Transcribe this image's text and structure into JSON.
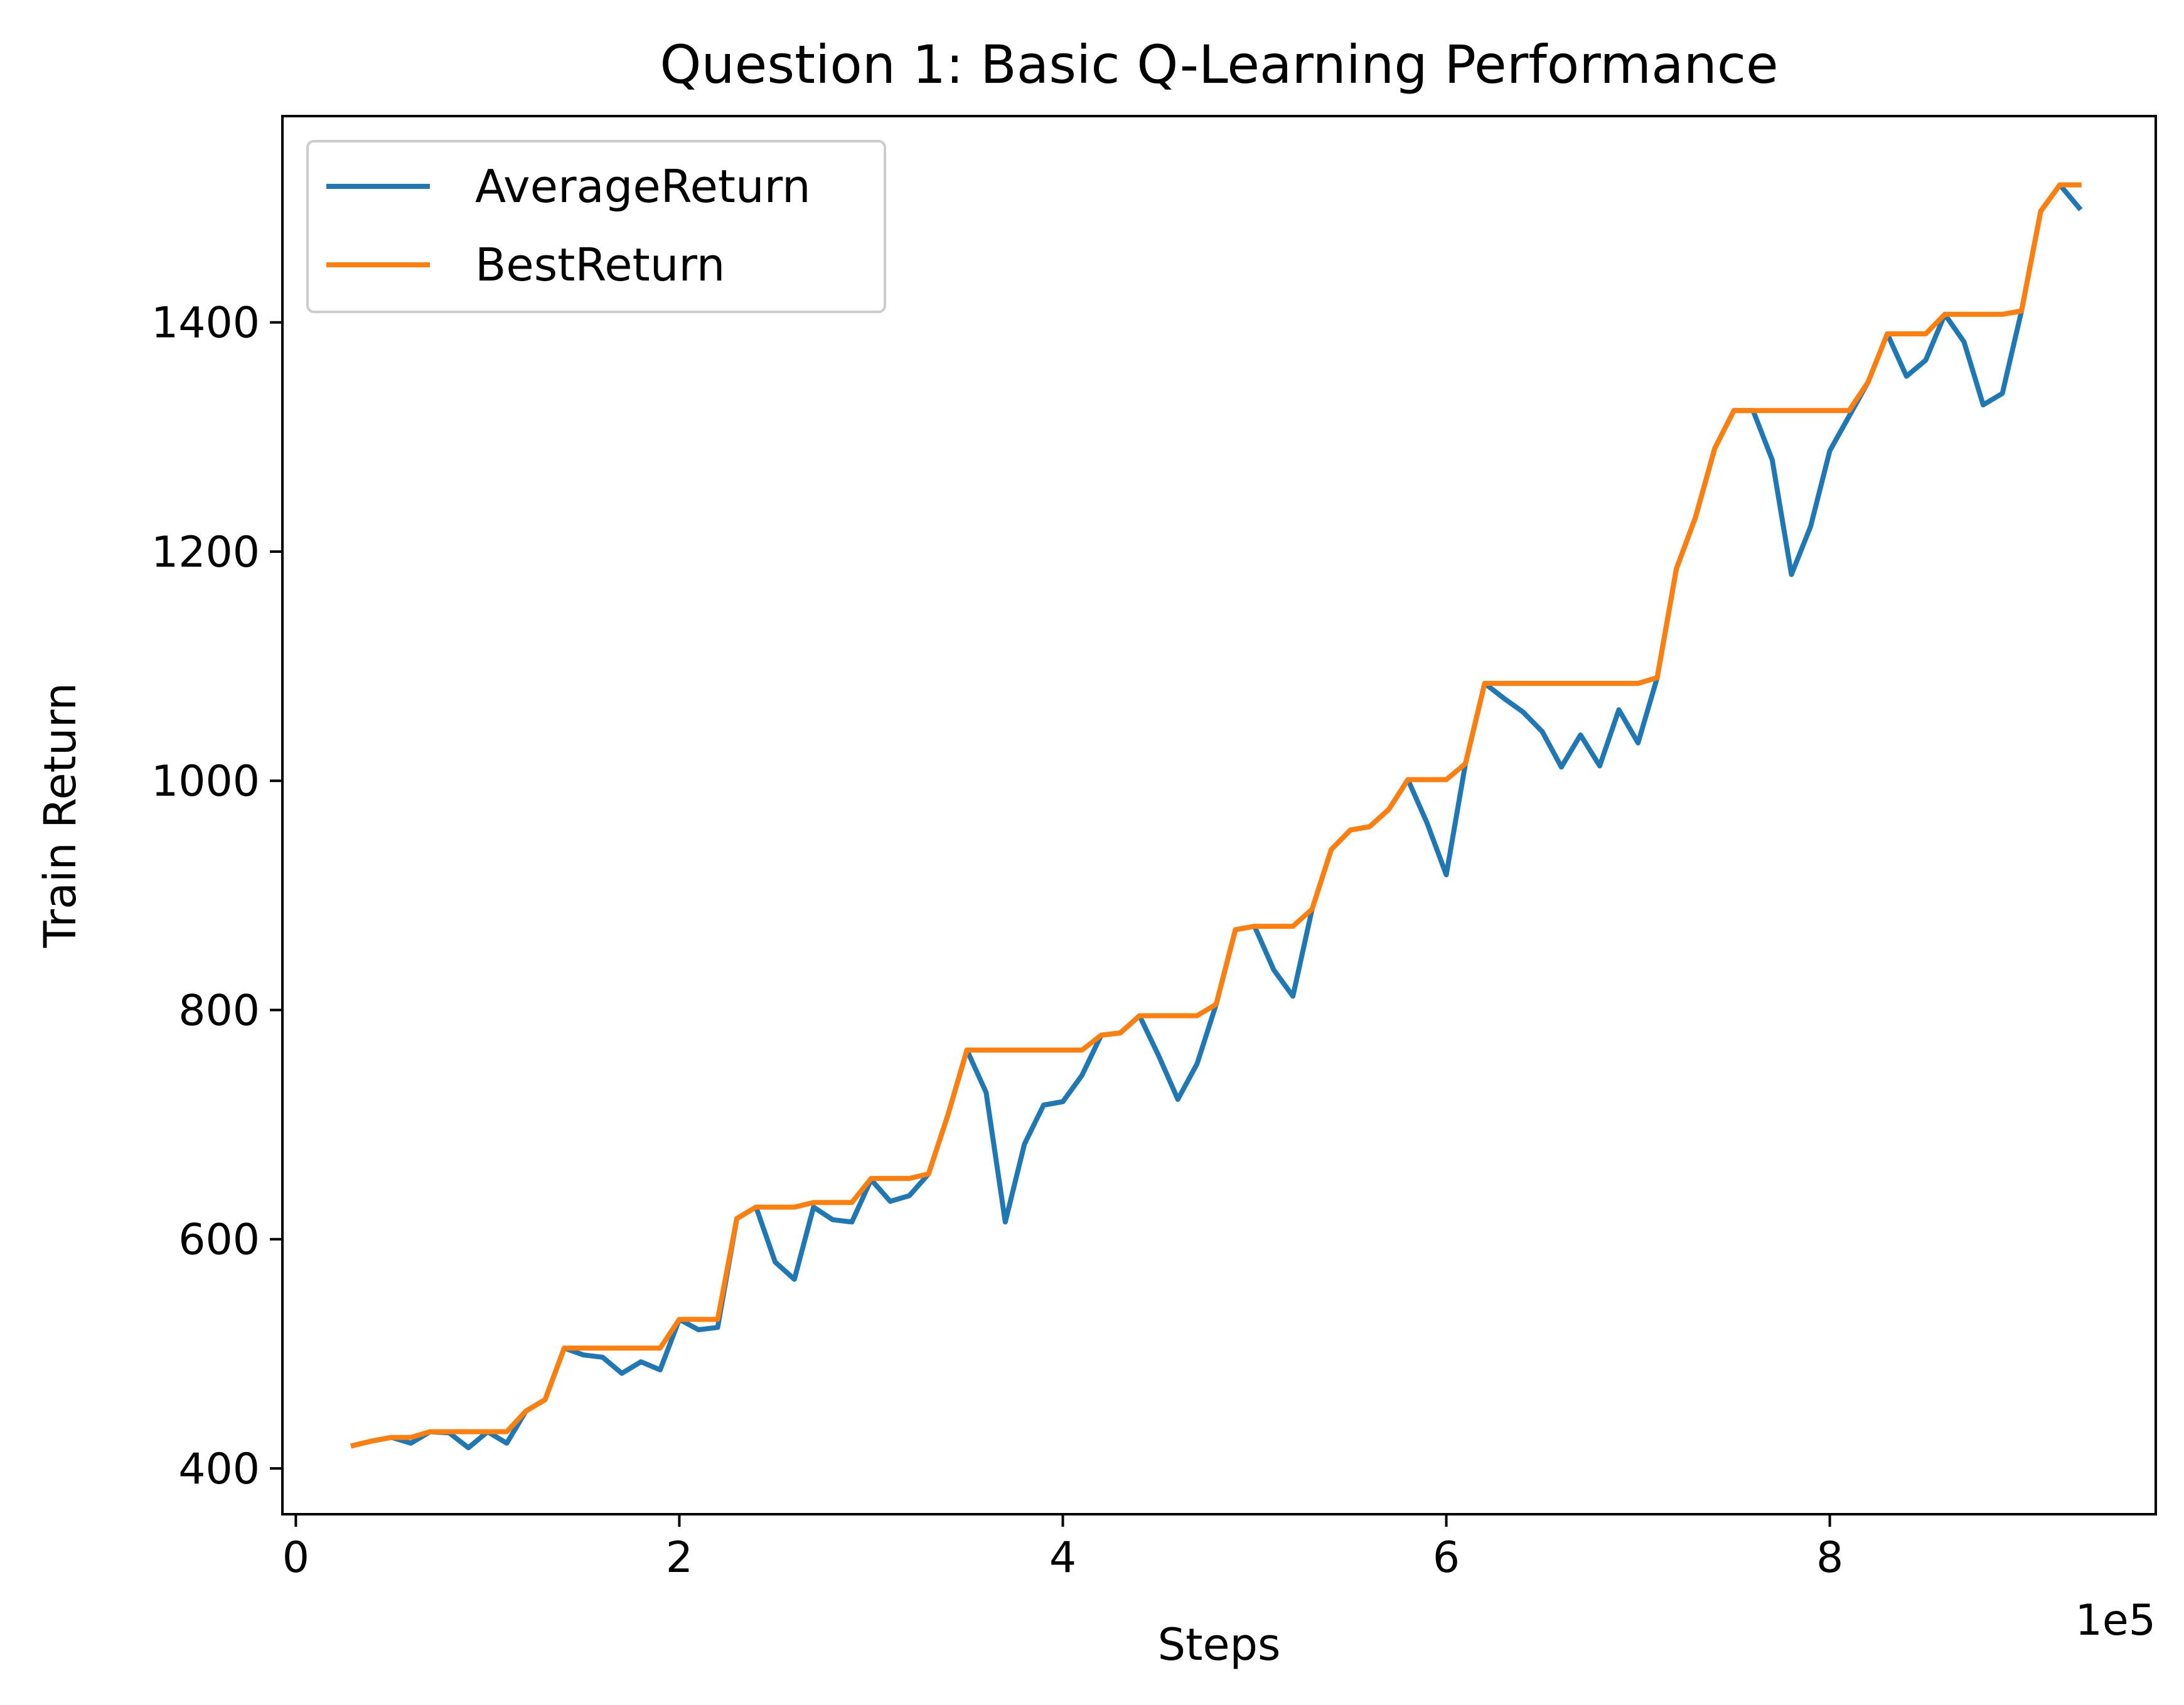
{
  "chart_data": {
    "type": "line",
    "title": "Question 1: Basic Q-Learning Performance",
    "xlabel": "Steps",
    "ylabel": "Train Return",
    "x_offset_label": "1e5",
    "x_scale": 100000,
    "xlim": [
      -7000,
      970000
    ],
    "ylim": [
      360,
      1580
    ],
    "xticks": [
      0,
      200000,
      400000,
      600000,
      800000
    ],
    "xtick_labels": [
      "0",
      "2",
      "4",
      "6",
      "8"
    ],
    "yticks": [
      400,
      600,
      800,
      1000,
      1200,
      1400
    ],
    "ytick_labels": [
      "400",
      "600",
      "800",
      "1000",
      "1200",
      "1400"
    ],
    "grid": false,
    "legend_position": "upper-left",
    "x": [
      30000,
      40000,
      50000,
      60000,
      70000,
      80000,
      90000,
      100000,
      110000,
      120000,
      130000,
      140000,
      150000,
      160000,
      170000,
      180000,
      190000,
      200000,
      210000,
      220000,
      230000,
      240000,
      250000,
      260000,
      270000,
      280000,
      290000,
      300000,
      310000,
      320000,
      330000,
      340000,
      350000,
      360000,
      370000,
      380000,
      390000,
      400000,
      410000,
      420000,
      430000,
      440000,
      450000,
      460000,
      470000,
      480000,
      490000,
      500000,
      510000,
      520000,
      530000,
      540000,
      550000,
      560000,
      570000,
      580000,
      590000,
      600000,
      610000,
      620000,
      630000,
      640000,
      650000,
      660000,
      670000,
      680000,
      690000,
      700000,
      710000,
      720000,
      730000,
      740000,
      750000,
      760000,
      770000,
      780000,
      790000,
      800000,
      810000,
      820000,
      830000,
      840000,
      850000,
      860000,
      870000,
      880000,
      890000,
      900000,
      910000,
      920000,
      930000
    ],
    "series": [
      {
        "name": "AverageReturn",
        "color": "#1f77b4",
        "values": [
          420,
          424,
          427,
          422,
          432,
          431,
          418,
          432,
          422,
          450,
          460,
          505,
          499,
          497,
          483,
          493,
          486,
          530,
          521,
          523,
          618,
          628,
          580,
          565,
          628,
          617,
          615,
          652,
          633,
          638,
          657,
          708,
          765,
          728,
          615,
          683,
          717,
          720,
          743,
          778,
          780,
          795,
          760,
          722,
          753,
          805,
          870,
          873,
          835,
          812,
          888,
          940,
          957,
          960,
          975,
          1001,
          963,
          918,
          1015,
          1085,
          1072,
          1060,
          1043,
          1012,
          1040,
          1013,
          1062,
          1033,
          1090,
          1185,
          1230,
          1290,
          1323,
          1323,
          1280,
          1180,
          1222,
          1288,
          1318,
          1348,
          1390,
          1353,
          1367,
          1407,
          1383,
          1328,
          1338,
          1410,
          1497,
          1520,
          1500
        ]
      },
      {
        "name": "BestReturn",
        "color": "#ff7f0e",
        "values": [
          420,
          424,
          427,
          427,
          432,
          432,
          432,
          432,
          432,
          450,
          460,
          505,
          505,
          505,
          505,
          505,
          505,
          530,
          530,
          530,
          618,
          628,
          628,
          628,
          632,
          632,
          632,
          653,
          653,
          653,
          657,
          708,
          765,
          765,
          765,
          765,
          765,
          765,
          765,
          778,
          780,
          795,
          795,
          795,
          795,
          805,
          870,
          873,
          873,
          873,
          888,
          940,
          957,
          960,
          975,
          1001,
          1001,
          1001,
          1015,
          1085,
          1085,
          1085,
          1085,
          1085,
          1085,
          1085,
          1085,
          1085,
          1090,
          1185,
          1230,
          1290,
          1323,
          1323,
          1323,
          1323,
          1323,
          1323,
          1323,
          1348,
          1390,
          1390,
          1390,
          1407,
          1407,
          1407,
          1407,
          1410,
          1497,
          1520,
          1520
        ]
      }
    ]
  }
}
